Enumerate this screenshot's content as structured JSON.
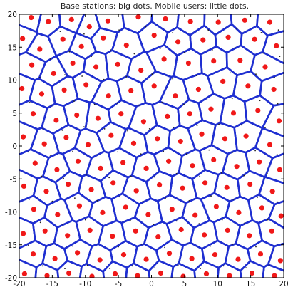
{
  "chart_data": {
    "type": "scatter",
    "title": "Base stations: big dots. Mobile users: little dots.",
    "xlim": [
      -20,
      20
    ],
    "ylim": [
      -20,
      20
    ],
    "x_ticks": [
      -20,
      -15,
      -10,
      -5,
      0,
      5,
      10,
      15,
      20
    ],
    "y_ticks": [
      -20,
      -15,
      -10,
      -5,
      0,
      5,
      10,
      15,
      20
    ],
    "grid": false,
    "voronoi_tessellation": true,
    "series": [
      {
        "marker": "big-dot",
        "color": "#f01818",
        "points": [
          [
            -18.2,
            19.5
          ],
          [
            -15.6,
            18.9
          ],
          [
            -12.1,
            19.2
          ],
          [
            -9.4,
            18.1
          ],
          [
            -6.6,
            19.0
          ],
          [
            -2.0,
            19.6
          ],
          [
            2.1,
            19.3
          ],
          [
            5.9,
            18.9
          ],
          [
            10.1,
            18.8
          ],
          [
            14.1,
            19.1
          ],
          [
            17.9,
            18.8
          ],
          [
            -19.5,
            16.3
          ],
          [
            -16.9,
            14.7
          ],
          [
            -13.4,
            16.2
          ],
          [
            -10.6,
            15.1
          ],
          [
            -7.3,
            16.4
          ],
          [
            -3.8,
            15.3
          ],
          [
            0.4,
            16.8
          ],
          [
            4.0,
            15.8
          ],
          [
            7.8,
            16.1
          ],
          [
            11.6,
            16.5
          ],
          [
            15.6,
            16.2
          ],
          [
            18.9,
            15.2
          ],
          [
            -18.1,
            12.3
          ],
          [
            -14.8,
            11.0
          ],
          [
            -11.9,
            12.6
          ],
          [
            -8.4,
            12.0
          ],
          [
            -5.1,
            12.4
          ],
          [
            -1.6,
            11.5
          ],
          [
            1.9,
            13.2
          ],
          [
            5.6,
            12.6
          ],
          [
            9.4,
            12.9
          ],
          [
            13.4,
            13.0
          ],
          [
            17.2,
            12.0
          ],
          [
            -19.6,
            8.7
          ],
          [
            -16.6,
            7.9
          ],
          [
            -13.2,
            8.5
          ],
          [
            -9.9,
            9.3
          ],
          [
            -6.5,
            7.6
          ],
          [
            -3.1,
            8.4
          ],
          [
            0.4,
            9.1
          ],
          [
            3.6,
            7.6
          ],
          [
            7.1,
            8.6
          ],
          [
            10.8,
            9.8
          ],
          [
            14.6,
            9.1
          ],
          [
            18.5,
            8.6
          ],
          [
            -17.9,
            4.9
          ],
          [
            -14.4,
            3.9
          ],
          [
            -11.3,
            4.7
          ],
          [
            -8.1,
            4.2
          ],
          [
            -4.6,
            4.9
          ],
          [
            -1.2,
            3.7
          ],
          [
            2.4,
            4.5
          ],
          [
            5.8,
            4.9
          ],
          [
            9.0,
            5.6
          ],
          [
            12.4,
            5.0
          ],
          [
            16.1,
            5.4
          ],
          [
            19.3,
            3.8
          ],
          [
            -19.4,
            1.4
          ],
          [
            -16.2,
            0.3
          ],
          [
            -12.9,
            1.3
          ],
          [
            -9.6,
            0.2
          ],
          [
            -6.1,
            1.6
          ],
          [
            -2.7,
            0.4
          ],
          [
            0.9,
            1.1
          ],
          [
            4.4,
            0.7
          ],
          [
            7.6,
            1.8
          ],
          [
            11.1,
            1.1
          ],
          [
            14.3,
            1.5
          ],
          [
            17.9,
            0.2
          ],
          [
            -17.6,
            -2.6
          ],
          [
            -14.3,
            -3.6
          ],
          [
            -11.1,
            -2.3
          ],
          [
            -7.7,
            -3.4
          ],
          [
            -4.3,
            -2.5
          ],
          [
            -0.8,
            -3.4
          ],
          [
            2.6,
            -2.3
          ],
          [
            6.2,
            -3.0
          ],
          [
            9.4,
            -2.1
          ],
          [
            12.9,
            -3.1
          ],
          [
            16.3,
            -2.4
          ],
          [
            19.4,
            -3.6
          ],
          [
            -19.3,
            -6.1
          ],
          [
            -15.9,
            -6.9
          ],
          [
            -12.6,
            -5.8
          ],
          [
            -9.1,
            -6.6
          ],
          [
            -5.8,
            -5.6
          ],
          [
            -2.3,
            -6.8
          ],
          [
            1.2,
            -5.9
          ],
          [
            4.7,
            -6.4
          ],
          [
            8.1,
            -5.6
          ],
          [
            11.4,
            -6.3
          ],
          [
            14.9,
            -5.8
          ],
          [
            18.3,
            -6.9
          ],
          [
            -17.8,
            -9.6
          ],
          [
            -14.2,
            -10.4
          ],
          [
            -10.9,
            -9.1
          ],
          [
            -7.4,
            -10.1
          ],
          [
            -3.9,
            -9.3
          ],
          [
            -0.5,
            -10.4
          ],
          [
            3.1,
            -9.6
          ],
          [
            6.6,
            -10.5
          ],
          [
            9.8,
            -9.2
          ],
          [
            13.2,
            -10.1
          ],
          [
            16.7,
            -9.4
          ],
          [
            19.6,
            -10.6
          ],
          [
            -19.4,
            -13.3
          ],
          [
            -16.1,
            -12.9
          ],
          [
            -12.7,
            -13.6
          ],
          [
            -9.3,
            -12.8
          ],
          [
            -5.9,
            -13.7
          ],
          [
            -2.4,
            -12.9
          ],
          [
            1.0,
            -13.8
          ],
          [
            4.5,
            -12.7
          ],
          [
            8.0,
            -13.5
          ],
          [
            11.5,
            -12.8
          ],
          [
            14.8,
            -13.6
          ],
          [
            18.2,
            -12.9
          ],
          [
            -17.9,
            -16.4
          ],
          [
            -14.6,
            -17.1
          ],
          [
            -11.2,
            -16.2
          ],
          [
            -7.8,
            -17.3
          ],
          [
            -4.2,
            -16.5
          ],
          [
            -0.8,
            -17.2
          ],
          [
            2.7,
            -16.3
          ],
          [
            6.1,
            -17.1
          ],
          [
            9.6,
            -16.5
          ],
          [
            13.1,
            -17.2
          ],
          [
            16.5,
            -16.4
          ],
          [
            19.5,
            -17.4
          ],
          [
            -19.2,
            -19.4
          ],
          [
            -15.8,
            -19.7
          ],
          [
            -12.5,
            -19.3
          ],
          [
            -9.0,
            -19.8
          ],
          [
            -5.5,
            -19.4
          ],
          [
            -2.1,
            -19.7
          ],
          [
            1.4,
            -19.3
          ],
          [
            4.8,
            -19.8
          ],
          [
            8.3,
            -19.4
          ],
          [
            11.8,
            -19.7
          ],
          [
            15.2,
            -19.3
          ],
          [
            18.6,
            -19.7
          ]
        ]
      },
      {
        "marker": "little-dot",
        "color": "#222222",
        "points": [
          [
            -17.1,
            18.2
          ],
          [
            -13.8,
            17.4
          ],
          [
            -10.2,
            17.0
          ],
          [
            -4.9,
            17.6
          ],
          [
            -0.9,
            18.1
          ],
          [
            3.2,
            17.2
          ],
          [
            8.6,
            17.6
          ],
          [
            12.9,
            17.8
          ],
          [
            16.6,
            17.2
          ],
          [
            19.2,
            17.6
          ],
          [
            -18.7,
            14.1
          ],
          [
            -15.3,
            13.2
          ],
          [
            -12.4,
            14.3
          ],
          [
            -9.1,
            13.6
          ],
          [
            -6.2,
            14.6
          ],
          [
            -2.6,
            14.0
          ],
          [
            1.3,
            14.8
          ],
          [
            5.0,
            14.2
          ],
          [
            9.2,
            14.6
          ],
          [
            12.6,
            14.9
          ],
          [
            16.9,
            14.1
          ],
          [
            19.4,
            13.6
          ],
          [
            -16.9,
            10.4
          ],
          [
            -13.1,
            10.8
          ],
          [
            -10.5,
            10.6
          ],
          [
            -7.2,
            10.1
          ],
          [
            -3.8,
            10.5
          ],
          [
            0.1,
            10.9
          ],
          [
            3.2,
            10.2
          ],
          [
            6.8,
            10.7
          ],
          [
            11.9,
            11.1
          ],
          [
            15.8,
            10.9
          ],
          [
            18.6,
            10.4
          ],
          [
            -18.4,
            6.6
          ],
          [
            -15.1,
            6.2
          ],
          [
            -11.7,
            6.8
          ],
          [
            -8.6,
            6.3
          ],
          [
            -5.2,
            6.5
          ],
          [
            -1.9,
            6.2
          ],
          [
            1.6,
            6.6
          ],
          [
            4.9,
            6.3
          ],
          [
            8.4,
            7.0
          ],
          [
            12.2,
            7.2
          ],
          [
            16.4,
            6.9
          ],
          [
            19.1,
            6.4
          ],
          [
            -16.4,
            2.6
          ],
          [
            -13.5,
            2.4
          ],
          [
            -10.2,
            2.9
          ],
          [
            -7.1,
            2.6
          ],
          [
            -3.6,
            2.3
          ],
          [
            -0.3,
            2.6
          ],
          [
            3.3,
            2.8
          ],
          [
            6.9,
            3.1
          ],
          [
            10.2,
            3.3
          ],
          [
            13.6,
            3.2
          ],
          [
            17.2,
            2.8
          ],
          [
            -18.6,
            -0.9
          ],
          [
            -15.3,
            -1.4
          ],
          [
            -11.9,
            -0.8
          ],
          [
            -8.4,
            -1.3
          ],
          [
            -5.1,
            -0.9
          ],
          [
            -1.6,
            -1.2
          ],
          [
            1.8,
            -0.8
          ],
          [
            5.3,
            -1.2
          ],
          [
            8.7,
            -0.6
          ],
          [
            12.2,
            -1.0
          ],
          [
            15.7,
            -0.7
          ],
          [
            19.0,
            -1.3
          ],
          [
            -16.6,
            -4.6
          ],
          [
            -13.3,
            -4.9
          ],
          [
            -9.9,
            -4.4
          ],
          [
            -6.4,
            -4.8
          ],
          [
            -3.1,
            -4.6
          ],
          [
            0.4,
            -4.7
          ],
          [
            3.8,
            -4.2
          ],
          [
            7.3,
            -4.6
          ],
          [
            10.6,
            -4.1
          ],
          [
            14.0,
            -4.5
          ],
          [
            17.5,
            -4.2
          ],
          [
            -18.5,
            -8.1
          ],
          [
            -15.0,
            -8.4
          ],
          [
            -11.6,
            -7.9
          ],
          [
            -8.2,
            -8.3
          ],
          [
            -4.8,
            -7.7
          ],
          [
            -1.3,
            -8.4
          ],
          [
            2.1,
            -7.9
          ],
          [
            5.7,
            -8.3
          ],
          [
            9.0,
            -7.6
          ],
          [
            12.4,
            -8.1
          ],
          [
            16.0,
            -7.8
          ],
          [
            19.1,
            -8.5
          ],
          [
            -16.8,
            -11.6
          ],
          [
            -13.4,
            -11.9
          ],
          [
            -10.0,
            -11.2
          ],
          [
            -6.6,
            -11.8
          ],
          [
            -3.2,
            -11.3
          ],
          [
            0.3,
            -11.9
          ],
          [
            3.8,
            -11.4
          ],
          [
            7.2,
            -11.8
          ],
          [
            10.7,
            -11.2
          ],
          [
            14.1,
            -11.7
          ],
          [
            17.6,
            -11.2
          ],
          [
            -18.6,
            -15.1
          ],
          [
            -15.2,
            -14.8
          ],
          [
            -11.9,
            -15.2
          ],
          [
            -8.4,
            -14.9
          ],
          [
            -5.0,
            -15.3
          ],
          [
            -1.5,
            -14.9
          ],
          [
            2.0,
            -15.4
          ],
          [
            5.4,
            -14.8
          ],
          [
            8.9,
            -15.2
          ],
          [
            12.3,
            -14.9
          ],
          [
            15.8,
            -15.3
          ],
          [
            19.0,
            -14.9
          ],
          [
            -16.5,
            -18.2
          ],
          [
            -13.1,
            -18.6
          ],
          [
            -9.7,
            -18.1
          ],
          [
            -6.3,
            -18.6
          ],
          [
            -2.9,
            -18.2
          ],
          [
            0.5,
            -18.5
          ],
          [
            4.0,
            -18.1
          ],
          [
            7.4,
            -18.6
          ],
          [
            10.9,
            -18.2
          ],
          [
            14.3,
            -18.5
          ],
          [
            17.8,
            -18.1
          ]
        ]
      }
    ]
  }
}
